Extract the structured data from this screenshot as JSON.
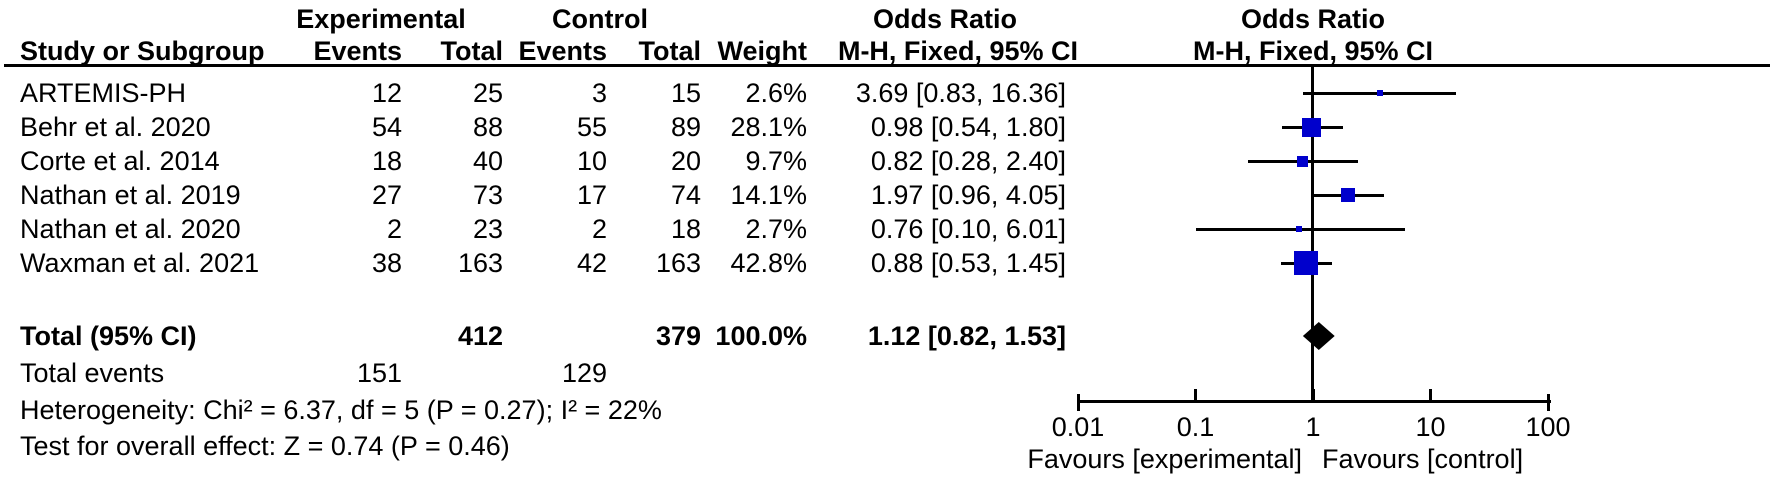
{
  "figure": {
    "group_headers": {
      "experimental": "Experimental",
      "control": "Control",
      "odds_ratio_left": "Odds Ratio",
      "odds_ratio_right": "Odds Ratio"
    },
    "columns": {
      "study": "Study or Subgroup",
      "events1": "Events",
      "total1": "Total",
      "events2": "Events",
      "total2": "Total",
      "weight": "Weight",
      "mh_left": "M-H, Fixed, 95% CI",
      "mh_right": "M-H, Fixed, 95% CI"
    },
    "studies": [
      {
        "name": "ARTEMIS-PH",
        "events1": "12",
        "total1": "25",
        "events2": "3",
        "total2": "15",
        "weight": "2.6%",
        "ci_text": "3.69 [0.83, 16.36]",
        "or": 3.69,
        "lo": 0.83,
        "hi": 16.36,
        "weight_pct": 2.6
      },
      {
        "name": "Behr et al. 2020",
        "events1": "54",
        "total1": "88",
        "events2": "55",
        "total2": "89",
        "weight": "28.1%",
        "ci_text": "0.98 [0.54, 1.80]",
        "or": 0.98,
        "lo": 0.54,
        "hi": 1.8,
        "weight_pct": 28.1
      },
      {
        "name": "Corte et al. 2014",
        "events1": "18",
        "total1": "40",
        "events2": "10",
        "total2": "20",
        "weight": "9.7%",
        "ci_text": "0.82 [0.28, 2.40]",
        "or": 0.82,
        "lo": 0.28,
        "hi": 2.4,
        "weight_pct": 9.7
      },
      {
        "name": "Nathan et al. 2019",
        "events1": "27",
        "total1": "73",
        "events2": "17",
        "total2": "74",
        "weight": "14.1%",
        "ci_text": "1.97 [0.96, 4.05]",
        "or": 1.97,
        "lo": 0.96,
        "hi": 4.05,
        "weight_pct": 14.1
      },
      {
        "name": "Nathan et al. 2020",
        "events1": "2",
        "total1": "23",
        "events2": "2",
        "total2": "18",
        "weight": "2.7%",
        "ci_text": "0.76 [0.10, 6.01]",
        "or": 0.76,
        "lo": 0.1,
        "hi": 6.01,
        "weight_pct": 2.7
      },
      {
        "name": "Waxman et al. 2021",
        "events1": "38",
        "total1": "163",
        "events2": "42",
        "total2": "163",
        "weight": "42.8%",
        "ci_text": "0.88 [0.53, 1.45]",
        "or": 0.88,
        "lo": 0.53,
        "hi": 1.45,
        "weight_pct": 42.8
      }
    ],
    "total_row": {
      "label": "Total (95% CI)",
      "total1": "412",
      "total2": "379",
      "weight": "100.0%",
      "ci_text": "1.12 [0.82, 1.53]",
      "or": 1.12,
      "lo": 0.82,
      "hi": 1.53
    },
    "total_events": {
      "label": "Total events",
      "events1": "151",
      "events2": "129"
    },
    "heterogeneity": "Heterogeneity: Chi² = 6.37, df = 5 (P = 0.27); I² = 22%",
    "overall_effect": "Test for overall effect: Z = 0.74 (P = 0.46)",
    "axis": {
      "scale": "log",
      "min": 0.01,
      "max": 100,
      "tick_labels": [
        "0.01",
        "0.1",
        "1",
        "10",
        "100"
      ],
      "tick_values": [
        0.01,
        0.1,
        1,
        10,
        100
      ]
    },
    "favours_left": "Favours [experimental]",
    "favours_right": "Favours [control]",
    "colors": {
      "marker": "#0000CC",
      "diamond": "#000000",
      "line": "#000000"
    }
  },
  "chart_data": {
    "type": "scatter",
    "subtype": "forest-plot",
    "title": "Odds Ratio M-H, Fixed, 95% CI",
    "x_scale": "log",
    "xlim": [
      0.01,
      100
    ],
    "x_ticks": [
      0.01,
      0.1,
      1,
      10,
      100
    ],
    "categories": [
      "ARTEMIS-PH",
      "Behr et al. 2020",
      "Corte et al. 2014",
      "Nathan et al. 2019",
      "Nathan et al. 2020",
      "Waxman et al. 2021"
    ],
    "series": [
      {
        "name": "Odds Ratio (M-H, Fixed)",
        "values": [
          3.69,
          0.98,
          0.82,
          1.97,
          0.76,
          0.88
        ]
      },
      {
        "name": "CI 95% lower",
        "values": [
          0.83,
          0.54,
          0.28,
          0.96,
          0.1,
          0.53
        ]
      },
      {
        "name": "CI 95% upper",
        "values": [
          16.36,
          1.8,
          2.4,
          4.05,
          6.01,
          1.45
        ]
      },
      {
        "name": "Weight %",
        "values": [
          2.6,
          28.1,
          9.7,
          14.1,
          2.7,
          42.8
        ]
      },
      {
        "name": "Experimental events",
        "values": [
          12,
          54,
          18,
          27,
          2,
          38
        ]
      },
      {
        "name": "Experimental total",
        "values": [
          25,
          88,
          40,
          73,
          23,
          163
        ]
      },
      {
        "name": "Control events",
        "values": [
          3,
          55,
          10,
          17,
          2,
          42
        ]
      },
      {
        "name": "Control total",
        "values": [
          15,
          89,
          20,
          74,
          18,
          163
        ]
      }
    ],
    "total": {
      "label": "Total (95% CI)",
      "or": 1.12,
      "lo": 0.82,
      "hi": 1.53,
      "weight_pct": 100.0,
      "experimental_total": 412,
      "control_total": 379,
      "experimental_events": 151,
      "control_events": 129
    },
    "annotations": [
      "Favours [experimental]",
      "Favours [control]",
      "Heterogeneity: Chi² = 6.37, df = 5 (P = 0.27); I² = 22%",
      "Test for overall effect: Z = 0.74 (P = 0.46)"
    ]
  }
}
